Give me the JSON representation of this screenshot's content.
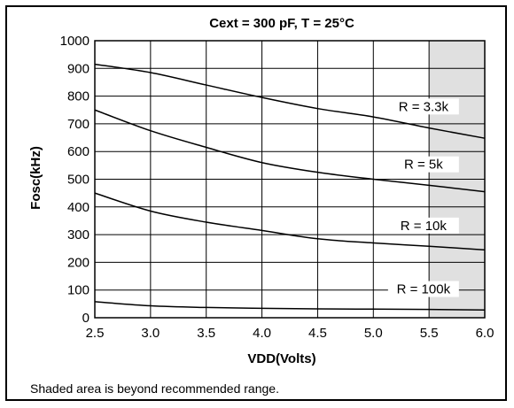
{
  "chart_data": {
    "type": "line",
    "title": "Cext = 300 pF, T = 25°C",
    "xlabel": "VDD(Volts)",
    "ylabel": "Fosc(kHz)",
    "xlim": [
      2.5,
      6.0
    ],
    "ylim": [
      0,
      1000
    ],
    "xticks": [
      2.5,
      3.0,
      3.5,
      4.0,
      4.5,
      5.0,
      5.5,
      6.0
    ],
    "xtick_labels": [
      "2.5",
      "3.0",
      "3.5",
      "4.0",
      "4.5",
      "5.0",
      "5.5",
      "6.0"
    ],
    "yticks": [
      0,
      100,
      200,
      300,
      400,
      500,
      600,
      700,
      800,
      900,
      1000
    ],
    "ytick_labels": [
      "0",
      "100",
      "200",
      "300",
      "400",
      "500",
      "600",
      "700",
      "800",
      "900",
      "1000"
    ],
    "grid": true,
    "shaded_region": {
      "x_from": 5.5,
      "x_to": 6.0,
      "color": "#e0e0e0"
    },
    "x": [
      2.5,
      3.0,
      3.5,
      4.0,
      4.5,
      5.0,
      5.5,
      6.0
    ],
    "series": [
      {
        "name": "R = 3.3k",
        "values": [
          915,
          885,
          840,
          795,
          755,
          725,
          685,
          648
        ]
      },
      {
        "name": "R = 5k",
        "values": [
          750,
          675,
          615,
          560,
          525,
          500,
          478,
          455
        ]
      },
      {
        "name": "R = 10k",
        "values": [
          450,
          385,
          345,
          315,
          285,
          270,
          258,
          245
        ]
      },
      {
        "name": "R = 100k",
        "values": [
          58,
          43,
          37,
          34,
          32,
          31,
          30,
          28
        ]
      }
    ],
    "note": "Shaded area is beyond recommended range."
  }
}
